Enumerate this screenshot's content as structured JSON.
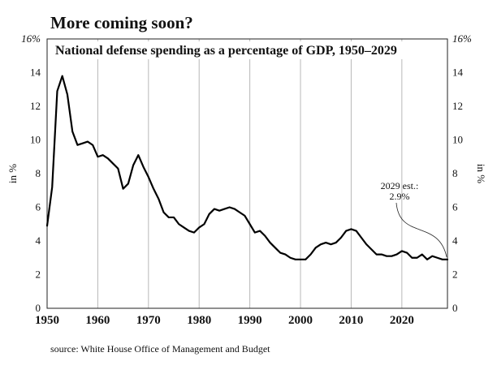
{
  "headline": "More coming soon?",
  "source": "source: White House Office of Management and Budget",
  "chart_data": {
    "type": "line",
    "title": "National defense spending as a percentage of GDP, 1950–2029",
    "ylabel_left": "in %",
    "ylabel_right": "in %",
    "xlim": [
      1950,
      2029
    ],
    "ylim": [
      0,
      16
    ],
    "y_ticks": [
      "0",
      "2",
      "4",
      "6",
      "8",
      "10",
      "12",
      "14",
      "16%"
    ],
    "x_ticks": [
      "1950",
      "1960",
      "1970",
      "1980",
      "1990",
      "2000",
      "2010",
      "2020"
    ],
    "grid": "vertical",
    "line_color": "#000000",
    "series": [
      {
        "x": [
          1950,
          1951,
          1952,
          1953,
          1954,
          1955,
          1956,
          1957,
          1958,
          1959,
          1960,
          1961,
          1962,
          1963,
          1964,
          1965,
          1966,
          1967,
          1968,
          1969,
          1970,
          1971,
          1972,
          1973,
          1974,
          1975,
          1976,
          1977,
          1978,
          1979,
          1980,
          1981,
          1982,
          1983,
          1984,
          1985,
          1986,
          1987,
          1988,
          1989,
          1990,
          1991,
          1992,
          1993,
          1994,
          1995,
          1996,
          1997,
          1998,
          1999,
          2000,
          2001,
          2002,
          2003,
          2004,
          2005,
          2006,
          2007,
          2008,
          2009,
          2010,
          2011,
          2012,
          2013,
          2014,
          2015,
          2016,
          2017,
          2018,
          2019,
          2020,
          2021,
          2022,
          2023,
          2024,
          2025,
          2026,
          2027,
          2028,
          2029
        ],
        "y": [
          4.9,
          7.2,
          12.9,
          13.8,
          12.7,
          10.5,
          9.7,
          9.8,
          9.9,
          9.7,
          9.0,
          9.1,
          8.9,
          8.6,
          8.3,
          7.1,
          7.4,
          8.5,
          9.1,
          8.4,
          7.8,
          7.1,
          6.5,
          5.7,
          5.4,
          5.4,
          5.0,
          4.8,
          4.6,
          4.5,
          4.8,
          5.0,
          5.6,
          5.9,
          5.8,
          5.9,
          6.0,
          5.9,
          5.7,
          5.5,
          5.0,
          4.5,
          4.6,
          4.3,
          3.9,
          3.6,
          3.3,
          3.2,
          3.0,
          2.9,
          2.9,
          2.9,
          3.2,
          3.6,
          3.8,
          3.9,
          3.8,
          3.9,
          4.2,
          4.6,
          4.7,
          4.6,
          4.2,
          3.8,
          3.5,
          3.2,
          3.2,
          3.1,
          3.1,
          3.2,
          3.4,
          3.3,
          3.0,
          3.0,
          3.2,
          2.9,
          3.1,
          3.0,
          2.9,
          2.9
        ]
      }
    ],
    "annotation": {
      "line1": "2029 est.:",
      "line2": "2.9%",
      "x": 2029,
      "y": 2.9
    }
  }
}
